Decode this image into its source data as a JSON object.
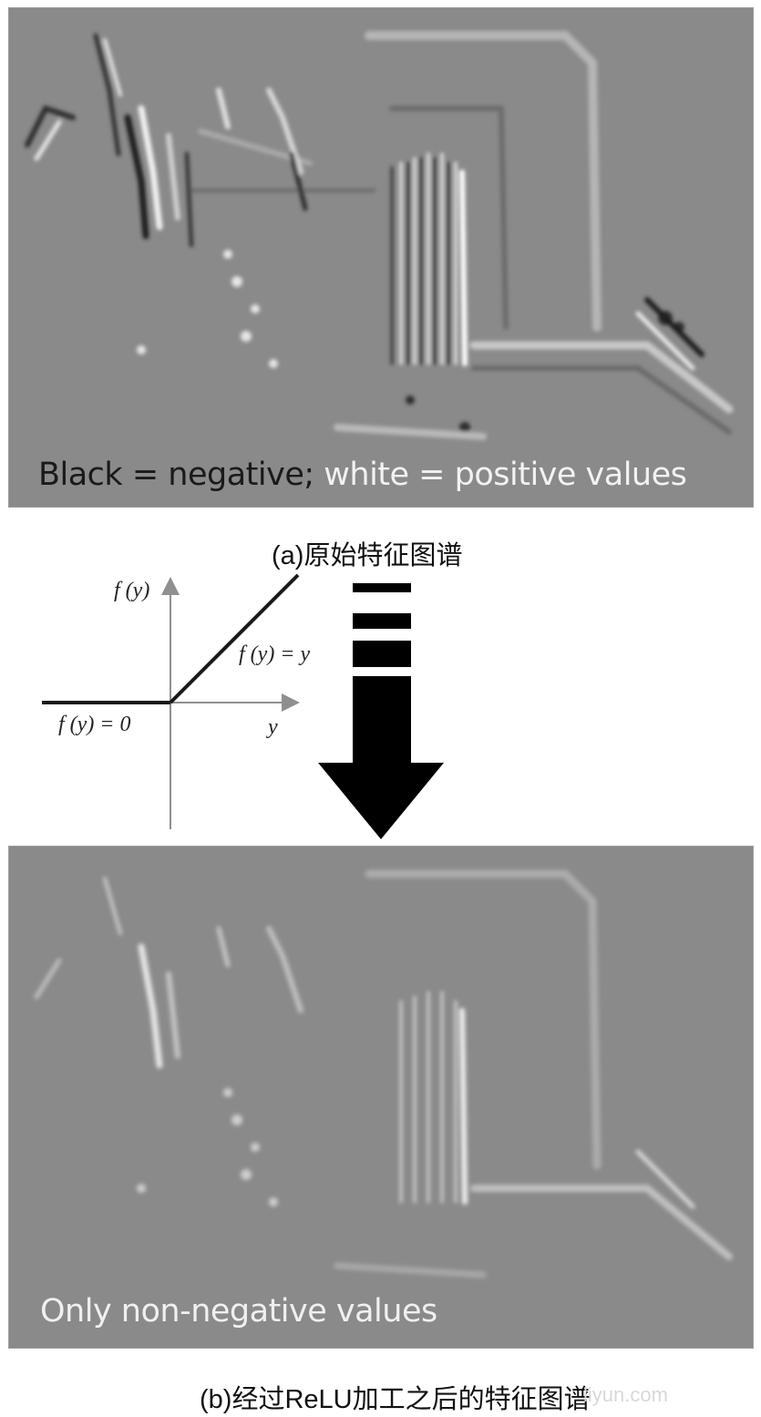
{
  "panel_a": {
    "overlay_black": "Black = negative;",
    "overlay_white": " white = positive values",
    "caption": "(a)原始特征图谱"
  },
  "relu": {
    "y_axis_label": "f (y)",
    "x_axis_label": "y",
    "pos_label": "f (y) = y",
    "zero_label": "f (y) = 0"
  },
  "panel_b": {
    "overlay": "Only non-negative values",
    "caption": "(b)经过ReLU加工之后的特征图谱"
  },
  "watermark": "liyun.com",
  "colors": {
    "feature_gray": "#8a8a8a",
    "relu_gray": "#8f8f8f",
    "arrow": "#000000"
  }
}
